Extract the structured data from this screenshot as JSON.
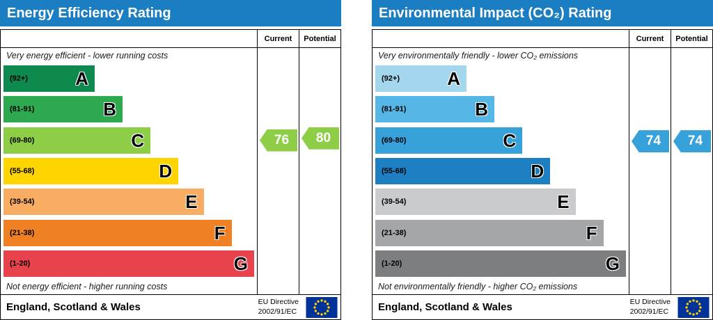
{
  "chart_data": [
    {
      "type": "bar",
      "title": "Energy Efficiency Rating",
      "column_headers": [
        "Current",
        "Potential"
      ],
      "top_caption": "Very energy efficient - lower running costs",
      "bottom_caption": "Not energy efficient - higher running costs",
      "bands": [
        {
          "letter": "A",
          "range_label": "(92+)",
          "low": 92,
          "high": 100,
          "color": "#0f8a4e",
          "width_pct": 36
        },
        {
          "letter": "B",
          "range_label": "(81-91)",
          "low": 81,
          "high": 91,
          "color": "#2fa94f",
          "width_pct": 47
        },
        {
          "letter": "C",
          "range_label": "(69-80)",
          "low": 69,
          "high": 80,
          "color": "#8dce46",
          "width_pct": 58
        },
        {
          "letter": "D",
          "range_label": "(55-68)",
          "low": 55,
          "high": 68,
          "color": "#ffd500",
          "width_pct": 69
        },
        {
          "letter": "E",
          "range_label": "(39-54)",
          "low": 39,
          "high": 54,
          "color": "#f9ad63",
          "width_pct": 79
        },
        {
          "letter": "F",
          "range_label": "(21-38)",
          "low": 21,
          "high": 38,
          "color": "#ef8023",
          "width_pct": 90
        },
        {
          "letter": "G",
          "range_label": "(1-20)",
          "low": 1,
          "high": 20,
          "color": "#e8434d",
          "width_pct": 100
        }
      ],
      "current": 76,
      "potential": 80,
      "footer_region": "England, Scotland & Wales",
      "footer_directive": [
        "EU Directive",
        "2002/91/EC"
      ],
      "header_color": "#1b7ec2"
    },
    {
      "type": "bar",
      "title": "Environmental Impact (CO₂) Rating",
      "column_headers": [
        "Current",
        "Potential"
      ],
      "top_caption": "Very environmentally friendly - lower CO₂ emissions",
      "bottom_caption": "Not environmentally friendly - higher CO₂ emissions",
      "bands": [
        {
          "letter": "A",
          "range_label": "(92+)",
          "low": 92,
          "high": 100,
          "color": "#a3d7ee",
          "width_pct": 36
        },
        {
          "letter": "B",
          "range_label": "(81-91)",
          "low": 81,
          "high": 91,
          "color": "#56b7e6",
          "width_pct": 47
        },
        {
          "letter": "C",
          "range_label": "(69-80)",
          "low": 69,
          "high": 80,
          "color": "#37a1da",
          "width_pct": 58
        },
        {
          "letter": "D",
          "range_label": "(55-68)",
          "low": 55,
          "high": 68,
          "color": "#1d7ec1",
          "width_pct": 69
        },
        {
          "letter": "E",
          "range_label": "(39-54)",
          "low": 39,
          "high": 54,
          "color": "#c9cbcd",
          "width_pct": 79
        },
        {
          "letter": "F",
          "range_label": "(21-38)",
          "low": 21,
          "high": 38,
          "color": "#a4a6a9",
          "width_pct": 90
        },
        {
          "letter": "G",
          "range_label": "(1-20)",
          "low": 1,
          "high": 20,
          "color": "#7c7e80",
          "width_pct": 100
        }
      ],
      "current": 74,
      "potential": 74,
      "footer_region": "England, Scotland & Wales",
      "footer_directive": [
        "EU Directive",
        "2002/91/EC"
      ],
      "header_color": "#1b7ec2"
    }
  ]
}
